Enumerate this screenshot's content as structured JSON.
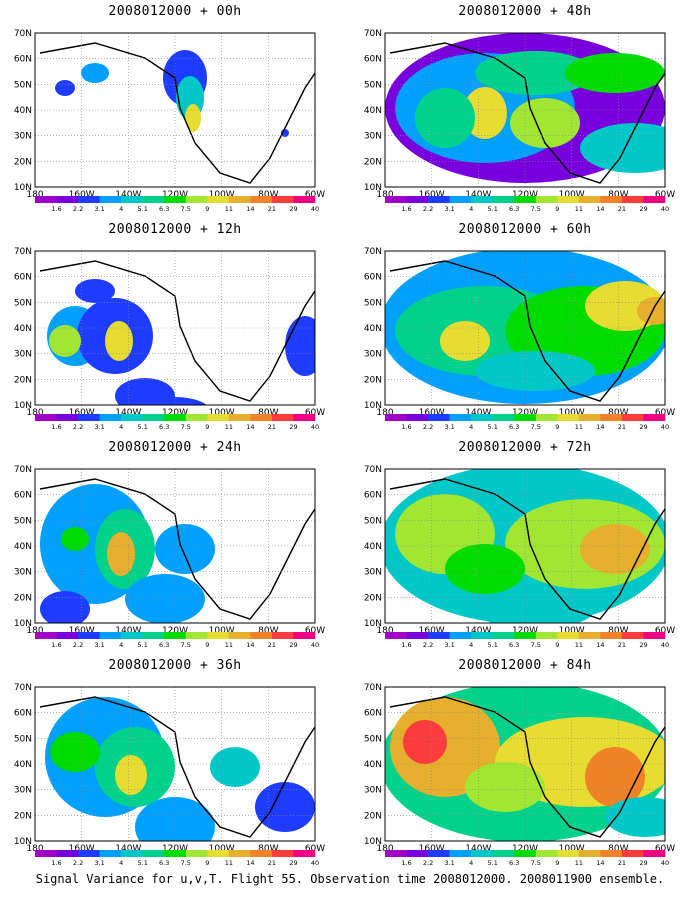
{
  "caption": "Signal Variance for u,v,T. Flight 55. Observation time 2008012000. 2008011900 ensemble.",
  "lat_labels": [
    "70N",
    "60N",
    "50N",
    "40N",
    "30N",
    "20N",
    "10N"
  ],
  "lon_labels": [
    "180",
    "160W",
    "140W",
    "120W",
    "100W",
    "80W",
    "60W"
  ],
  "colorbar": {
    "labels": [
      "1.6",
      "2.2",
      "3.1",
      "4",
      "5.1",
      "6.3",
      "7.5",
      "9",
      "11",
      "14",
      "21",
      "29",
      "40"
    ],
    "colors": [
      "#a000c8",
      "#7800dc",
      "#1e3cff",
      "#00a0ff",
      "#00c8c8",
      "#00d28c",
      "#00dc00",
      "#a0e632",
      "#e6dc32",
      "#e6af2d",
      "#f08228",
      "#fa3c3c",
      "#f00082"
    ]
  },
  "panels": [
    {
      "id": "p00",
      "title": "2008012000 + 00h",
      "blobs": [
        [
          150,
          45,
          22,
          28,
          2
        ],
        [
          155,
          65,
          14,
          22,
          4
        ],
        [
          158,
          85,
          8,
          14,
          8
        ],
        [
          60,
          40,
          14,
          10,
          3
        ],
        [
          30,
          55,
          10,
          8,
          2
        ],
        [
          250,
          100,
          4,
          4,
          2
        ]
      ]
    },
    {
      "id": "p48",
      "title": "2008012000 + 48h",
      "blobs": [
        [
          140,
          75,
          140,
          75,
          1
        ],
        [
          100,
          75,
          90,
          55,
          3
        ],
        [
          150,
          40,
          60,
          22,
          5
        ],
        [
          230,
          40,
          50,
          20,
          6
        ],
        [
          100,
          80,
          22,
          26,
          8
        ],
        [
          250,
          115,
          55,
          25,
          4
        ],
        [
          60,
          85,
          30,
          30,
          5
        ],
        [
          160,
          90,
          35,
          25,
          7
        ]
      ]
    },
    {
      "id": "p12",
      "title": "2008012000 + 12h",
      "blobs": [
        [
          40,
          85,
          28,
          30,
          3
        ],
        [
          80,
          85,
          38,
          38,
          2
        ],
        [
          30,
          90,
          16,
          16,
          7
        ],
        [
          84,
          90,
          14,
          20,
          8
        ],
        [
          110,
          145,
          30,
          18,
          2
        ],
        [
          140,
          160,
          35,
          14,
          2
        ],
        [
          270,
          95,
          20,
          30,
          2
        ],
        [
          60,
          40,
          20,
          12,
          2
        ]
      ]
    },
    {
      "id": "p60",
      "title": "2008012000 + 60h",
      "blobs": [
        [
          140,
          75,
          145,
          78,
          3
        ],
        [
          100,
          80,
          90,
          45,
          5
        ],
        [
          200,
          80,
          80,
          45,
          6
        ],
        [
          240,
          55,
          40,
          25,
          8
        ],
        [
          80,
          90,
          25,
          20,
          8
        ],
        [
          150,
          120,
          60,
          20,
          4
        ],
        [
          270,
          60,
          18,
          14,
          9
        ]
      ]
    },
    {
      "id": "p24",
      "title": "2008012000 + 24h",
      "blobs": [
        [
          60,
          75,
          55,
          60,
          3
        ],
        [
          90,
          80,
          30,
          40,
          5
        ],
        [
          86,
          85,
          14,
          22,
          9
        ],
        [
          130,
          130,
          40,
          25,
          3
        ],
        [
          40,
          70,
          14,
          12,
          6
        ],
        [
          150,
          80,
          30,
          25,
          3
        ],
        [
          30,
          140,
          25,
          18,
          2
        ]
      ]
    },
    {
      "id": "p72",
      "title": "2008012000 + 72h",
      "blobs": [
        [
          140,
          75,
          145,
          80,
          4
        ],
        [
          60,
          65,
          50,
          40,
          7
        ],
        [
          200,
          75,
          80,
          45,
          7
        ],
        [
          230,
          80,
          35,
          25,
          9
        ],
        [
          100,
          100,
          40,
          25,
          6
        ],
        [
          150,
          140,
          60,
          20,
          4
        ]
      ]
    },
    {
      "id": "p36",
      "title": "2008012000 + 36h",
      "blobs": [
        [
          70,
          70,
          60,
          60,
          3
        ],
        [
          100,
          80,
          40,
          40,
          5
        ],
        [
          40,
          65,
          25,
          20,
          6
        ],
        [
          96,
          88,
          16,
          20,
          8
        ],
        [
          140,
          140,
          40,
          30,
          3
        ],
        [
          200,
          80,
          25,
          20,
          4
        ],
        [
          250,
          120,
          30,
          25,
          2
        ]
      ]
    },
    {
      "id": "p84",
      "title": "2008012000 + 84h",
      "blobs": [
        [
          140,
          75,
          145,
          80,
          5
        ],
        [
          60,
          60,
          55,
          50,
          9
        ],
        [
          40,
          55,
          22,
          22,
          11
        ],
        [
          200,
          75,
          90,
          45,
          8
        ],
        [
          230,
          90,
          30,
          30,
          10
        ],
        [
          120,
          100,
          40,
          25,
          7
        ],
        [
          260,
          130,
          40,
          20,
          4
        ]
      ]
    }
  ]
}
